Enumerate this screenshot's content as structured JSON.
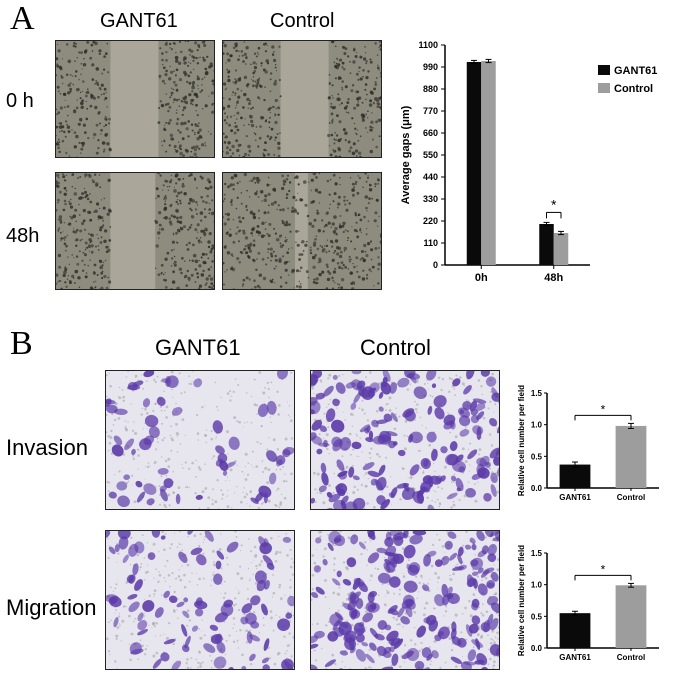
{
  "panelA": {
    "letter": "A",
    "letter_fontsize": 34,
    "col_headers": [
      "GANT61",
      "Control"
    ],
    "row_headers": [
      "0 h",
      "48h"
    ],
    "header_fontsize": 20,
    "micrograph_bg": "#8e8c7f",
    "cell_speckle_color": "#2f2f29",
    "gap_fill": "#aaa79a",
    "images": {
      "r0c0": {
        "gap_left_pct": 34,
        "gap_width_pct": 30,
        "speckle_density": 420
      },
      "r0c1": {
        "gap_left_pct": 36,
        "gap_width_pct": 30,
        "speckle_density": 420
      },
      "r1c0": {
        "gap_left_pct": 34,
        "gap_width_pct": 28,
        "speckle_density": 460
      },
      "r1c1": {
        "gap_left_pct": 45,
        "gap_width_pct": 8,
        "speckle_density": 520
      }
    },
    "chart": {
      "type": "bar",
      "ytitle": "Average gaps (μm)",
      "ylim": [
        0,
        1100
      ],
      "yticks": [
        0,
        110,
        220,
        330,
        440,
        550,
        660,
        770,
        880,
        990,
        1100
      ],
      "groups": [
        "0h",
        "48h"
      ],
      "series": [
        {
          "name": "GANT61",
          "color": "#0a0a0a",
          "values": [
            1015,
            205
          ],
          "err": [
            8,
            8
          ]
        },
        {
          "name": "Control",
          "color": "#9d9d9d",
          "values": [
            1020,
            160
          ],
          "err": [
            8,
            8
          ]
        }
      ],
      "sig_marker": "*",
      "sig_on_group": "48h",
      "label_fontsize": 11,
      "title_fontsize": 11,
      "background": "#ffffff",
      "bar_width": 0.4,
      "error_cap_color": "#000000"
    }
  },
  "panelB": {
    "letter": "B",
    "letter_fontsize": 34,
    "col_headers": [
      "GANT61",
      "Control"
    ],
    "row_headers": [
      "Invasion",
      "Migration"
    ],
    "header_fontsize": 22,
    "micrograph_bg": "#e7e5ee",
    "stain_color": "#5b3aa9",
    "pore_color": "#9a9a9a",
    "images": {
      "invasion_gant": {
        "stained_pct": 18
      },
      "invasion_ctrl": {
        "stained_pct": 55
      },
      "migration_gant": {
        "stained_pct": 28
      },
      "migration_ctrl": {
        "stained_pct": 60
      }
    },
    "chart_invasion": {
      "type": "bar",
      "ytitle": "Relative cell number per field",
      "ylim": [
        0,
        1.5
      ],
      "yticks": [
        0.0,
        0.5,
        1.0,
        1.5
      ],
      "categories": [
        "GANT61",
        "Control"
      ],
      "values": [
        0.37,
        0.98
      ],
      "err": [
        0.04,
        0.04
      ],
      "colors": [
        "#0a0a0a",
        "#9d9d9d"
      ],
      "sig_marker": "*",
      "label_fontsize": 8,
      "title_fontsize": 8,
      "background": "#ffffff"
    },
    "chart_migration": {
      "type": "bar",
      "ytitle": "Relative cell number per field",
      "ylim": [
        0,
        1.5
      ],
      "yticks": [
        0.0,
        0.5,
        1.0,
        1.5
      ],
      "categories": [
        "GANT61",
        "Control"
      ],
      "values": [
        0.55,
        0.99
      ],
      "err": [
        0.03,
        0.03
      ],
      "colors": [
        "#0a0a0a",
        "#9d9d9d"
      ],
      "sig_marker": "*",
      "label_fontsize": 8,
      "title_fontsize": 8,
      "background": "#ffffff"
    }
  }
}
